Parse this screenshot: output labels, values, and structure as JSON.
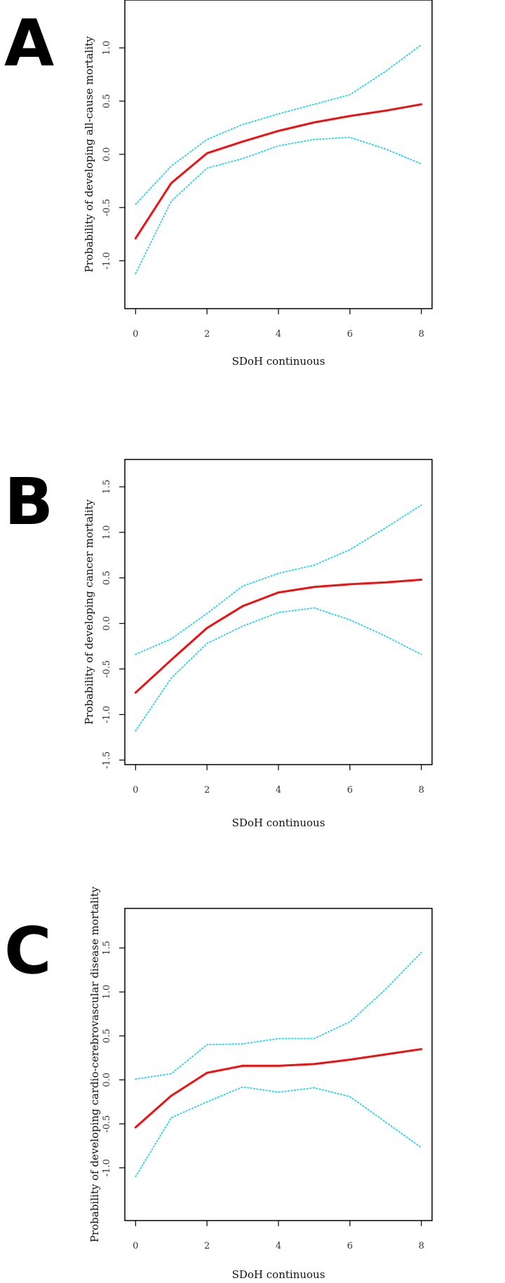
{
  "chart_data": [
    {
      "type": "line",
      "panel_label": "A",
      "xlabel": "SDoH continuous",
      "ylabel": "Probability of developing all-cause mortality",
      "x": [
        0,
        1,
        2,
        3,
        4,
        5,
        6,
        7,
        8
      ],
      "xticks": [
        "0",
        "2",
        "4",
        "6",
        "8"
      ],
      "xlim": [
        -0.3,
        8.3
      ],
      "yticks": [
        "-1.0",
        "-0.5",
        "0.0",
        "0.5",
        "1.0"
      ],
      "ylim": [
        -1.45,
        1.45
      ],
      "grid": false,
      "series": [
        {
          "role": "estimate",
          "color": "#ee1111",
          "style": "solid",
          "values": [
            -0.79,
            -0.27,
            0.01,
            0.12,
            0.22,
            0.3,
            0.36,
            0.41,
            0.47
          ]
        },
        {
          "role": "upper",
          "color": "#22d4e6",
          "style": "dotted",
          "values": [
            -0.47,
            -0.11,
            0.14,
            0.28,
            0.38,
            0.47,
            0.56,
            0.78,
            1.03
          ]
        },
        {
          "role": "lower",
          "color": "#22d4e6",
          "style": "dotted",
          "values": [
            -1.12,
            -0.44,
            -0.13,
            -0.04,
            0.08,
            0.14,
            0.16,
            0.05,
            -0.09
          ]
        }
      ]
    },
    {
      "type": "line",
      "panel_label": "B",
      "xlabel": "SDoH continuous",
      "ylabel": "Probability of developing cancer mortality",
      "x": [
        0,
        1,
        2,
        3,
        4,
        5,
        6,
        7,
        8
      ],
      "xticks": [
        "0",
        "2",
        "4",
        "6",
        "8"
      ],
      "xlim": [
        -0.3,
        8.3
      ],
      "yticks": [
        "-1.5",
        "-1.0",
        "-0.5",
        "0.0",
        "0.5",
        "1.0",
        "1.5"
      ],
      "ylim": [
        -1.55,
        1.8
      ],
      "grid": false,
      "series": [
        {
          "role": "estimate",
          "color": "#ee1111",
          "style": "solid",
          "values": [
            -0.76,
            -0.4,
            -0.05,
            0.19,
            0.34,
            0.4,
            0.43,
            0.45,
            0.48
          ]
        },
        {
          "role": "upper",
          "color": "#22d4e6",
          "style": "dotted",
          "values": [
            -0.34,
            -0.17,
            0.11,
            0.41,
            0.55,
            0.64,
            0.81,
            1.05,
            1.3
          ]
        },
        {
          "role": "lower",
          "color": "#22d4e6",
          "style": "dotted",
          "values": [
            -1.18,
            -0.6,
            -0.22,
            -0.03,
            0.12,
            0.17,
            0.04,
            -0.14,
            -0.34
          ]
        }
      ]
    },
    {
      "type": "line",
      "panel_label": "C",
      "xlabel": "SDoH continuous",
      "ylabel": "Probability of developing cardio-cerebrovascular disease mortality",
      "x": [
        0,
        1,
        2,
        3,
        4,
        5,
        6,
        7,
        8
      ],
      "xticks": [
        "0",
        "2",
        "4",
        "6",
        "8"
      ],
      "xlim": [
        -0.3,
        8.3
      ],
      "yticks": [
        "-1.0",
        "-0.5",
        "0.0",
        "0.5",
        "1.0",
        "1.5"
      ],
      "ylim": [
        -1.6,
        1.95
      ],
      "grid": false,
      "series": [
        {
          "role": "estimate",
          "color": "#ee1111",
          "style": "solid",
          "values": [
            -0.54,
            -0.18,
            0.08,
            0.16,
            0.16,
            0.18,
            0.23,
            0.29,
            0.35
          ]
        },
        {
          "role": "upper",
          "color": "#22d4e6",
          "style": "dotted",
          "values": [
            0.01,
            0.07,
            0.4,
            0.41,
            0.47,
            0.47,
            0.66,
            1.03,
            1.45
          ]
        },
        {
          "role": "lower",
          "color": "#22d4e6",
          "style": "dotted",
          "values": [
            -1.1,
            -0.43,
            -0.25,
            -0.08,
            -0.14,
            -0.09,
            -0.19,
            -0.48,
            -0.77
          ]
        }
      ]
    }
  ]
}
